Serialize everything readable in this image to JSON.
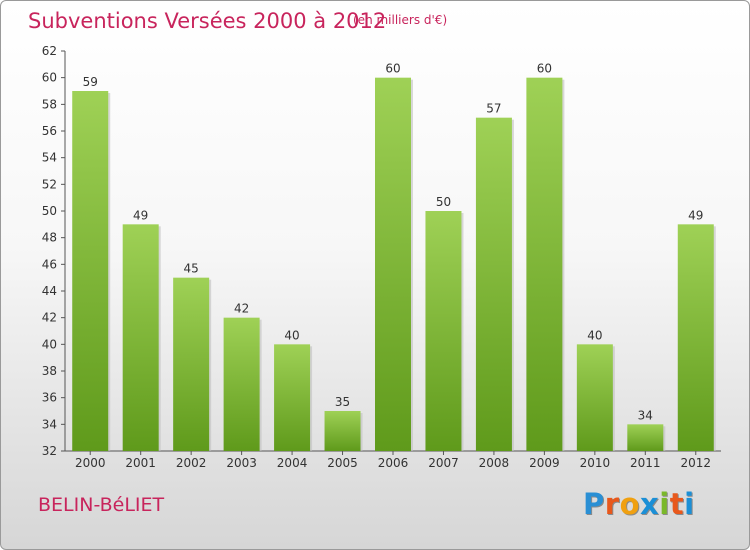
{
  "header": {
    "title": "Subventions Versées 2000 à 2012",
    "subtitle": "(en milliers d'€)"
  },
  "footer": {
    "commune": "BELIN-BéLIET",
    "logo_letters": [
      "P",
      "r",
      "o",
      "x",
      "i",
      "t",
      "i"
    ],
    "logo_colors": [
      "#2a8fd4",
      "#e8581c",
      "#f0a010",
      "#1b8fd6",
      "#7ab82a",
      "#e8581c",
      "#1b8fd6"
    ]
  },
  "colors": {
    "bar_top": "#9fd156",
    "bar_bottom": "#5f9a1b",
    "text": "#c8245c"
  },
  "chart_data": {
    "type": "bar",
    "categories": [
      "2000",
      "2001",
      "2002",
      "2003",
      "2004",
      "2005",
      "2006",
      "2007",
      "2008",
      "2009",
      "2010",
      "2011",
      "2012"
    ],
    "values": [
      59,
      49,
      45,
      42,
      40,
      35,
      60,
      50,
      57,
      60,
      40,
      34,
      49
    ],
    "data_labels": [
      "59",
      "49",
      "45",
      "42",
      "40",
      "35",
      "60",
      "50",
      "57",
      "60",
      "40",
      "34",
      "49"
    ],
    "yticks": [
      "32",
      "34",
      "36",
      "38",
      "40",
      "42",
      "44",
      "46",
      "48",
      "50",
      "52",
      "54",
      "56",
      "58",
      "60",
      "62"
    ],
    "ylim": [
      32,
      62
    ],
    "grid": false,
    "legend": "none"
  }
}
